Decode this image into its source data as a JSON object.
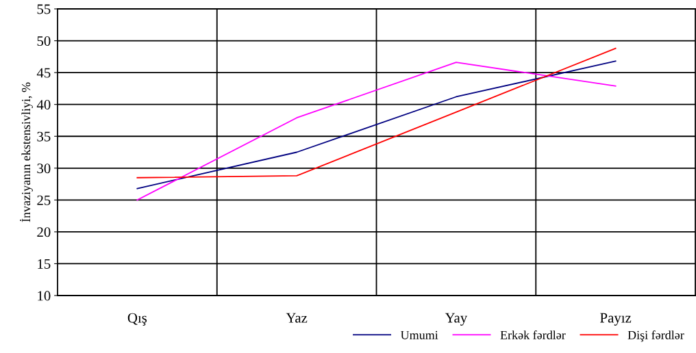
{
  "chart_data": {
    "type": "line",
    "ylabel": "İnvaziyanın ekstensivliyi, %",
    "categories": [
      "Qış",
      "Yaz",
      "Yay",
      "Payız"
    ],
    "series": [
      {
        "name": "Umumi",
        "color": "#000080",
        "values": [
          26.8,
          32.5,
          41.2,
          46.8
        ]
      },
      {
        "name": "Erkək fərdlər",
        "color": "#ff00ff",
        "values": [
          25.0,
          37.9,
          46.6,
          42.9
        ]
      },
      {
        "name": "Dişi fərdlər",
        "color": "#ff0000",
        "values": [
          28.5,
          28.8,
          38.8,
          48.8
        ]
      }
    ],
    "ylim": [
      10,
      55
    ],
    "yticks": [
      10,
      15,
      20,
      25,
      30,
      35,
      40,
      45,
      50,
      55
    ],
    "grid": true,
    "legend": "bottom right",
    "marker": "none",
    "line_style": "solid"
  }
}
